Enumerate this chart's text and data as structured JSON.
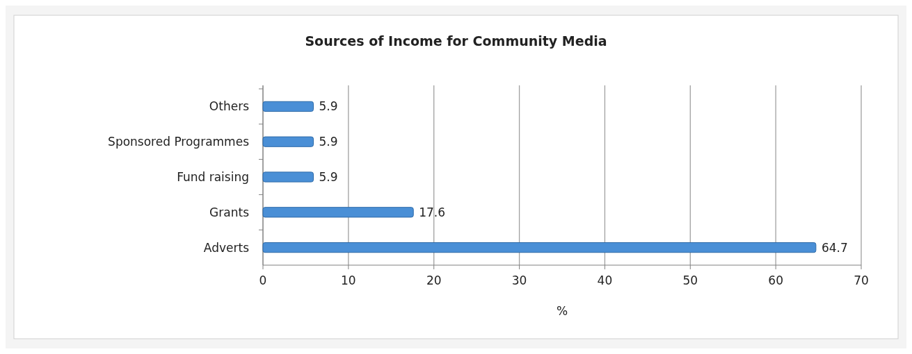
{
  "chart_data": {
    "type": "bar",
    "orientation": "horizontal",
    "title": "Sources of Income for Community Media",
    "xlabel": "%",
    "categories": [
      "Others",
      "Sponsored Programmes",
      "Fund raising",
      "Grants",
      "Adverts"
    ],
    "values": [
      5.9,
      5.9,
      5.9,
      17.6,
      64.7
    ],
    "color": "#4a8fd6",
    "xlim": [
      0,
      70
    ],
    "xticks": [
      0,
      10,
      20,
      30,
      40,
      50,
      60,
      70
    ],
    "grid": "x",
    "data_labels": true
  }
}
